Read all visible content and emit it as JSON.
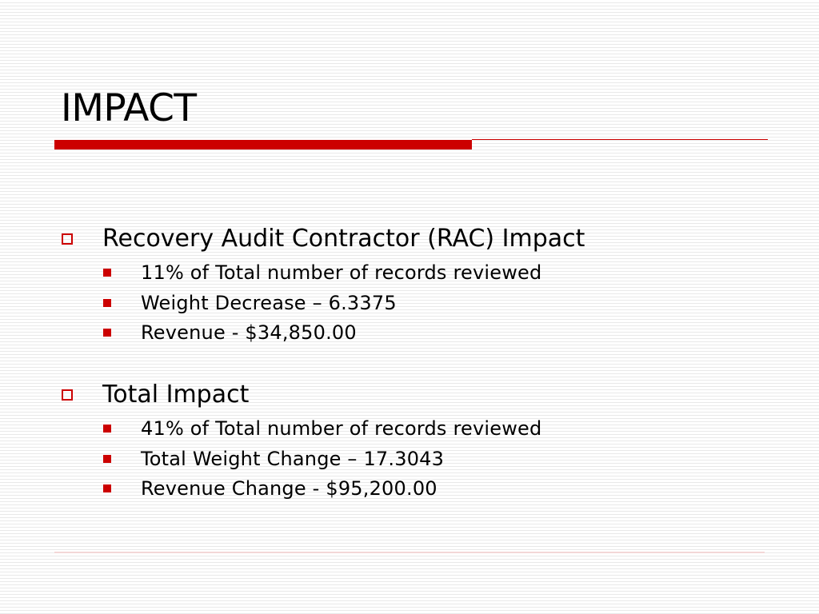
{
  "slide": {
    "title": "IMPACT",
    "sections": [
      {
        "heading": "Recovery Audit Contractor (RAC) Impact",
        "items": [
          "11% of Total number of records reviewed",
          "Weight Decrease – 6.3375",
          "Revenue - $34,850.00"
        ]
      },
      {
        "heading": "Total Impact",
        "items": [
          "41% of Total number of records reviewed",
          "Total Weight Change – 17.3043",
          "Revenue Change - $95,200.00"
        ]
      }
    ]
  },
  "colors": {
    "accent": "#cc0000",
    "text": "#000000"
  },
  "icons": {
    "level1_bullet": "hollow-square-icon",
    "level2_bullet": "filled-square-icon"
  }
}
